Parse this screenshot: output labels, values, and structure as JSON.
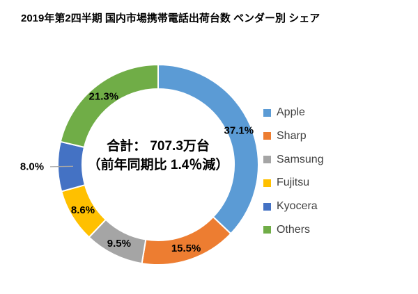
{
  "chart_data": {
    "type": "donut",
    "title": "2019年第2四半期 国内市場携帯電話出荷台数 ベンダー別 シェア",
    "center_text": {
      "line1": "合計： 707.3万台",
      "line2": "（前年同期比 1.4％減）"
    },
    "unit": "%",
    "start_angle_deg": 0,
    "direction": "clockwise",
    "donut_hole_ratio": 0.76,
    "segment_border_color": "#FFFFFF",
    "leader_line_color": "#A6A6A6",
    "legend_position": "right",
    "label_color": "#000000",
    "series": [
      {
        "name": "Apple",
        "value": 37.1,
        "label": "37.1%",
        "color": "#5B9BD5",
        "label_placement": "inside"
      },
      {
        "name": "Sharp",
        "value": 15.5,
        "label": "15.5%",
        "color": "#ED7D31",
        "label_placement": "inside"
      },
      {
        "name": "Samsung",
        "value": 9.5,
        "label": "9.5%",
        "color": "#A5A5A5",
        "label_placement": "inside"
      },
      {
        "name": "Fujitsu",
        "value": 8.6,
        "label": "8.6%",
        "color": "#FFC000",
        "label_placement": "inside"
      },
      {
        "name": "Kyocera",
        "value": 8.0,
        "label": "8.0%",
        "color": "#4472C4",
        "label_placement": "outside-left"
      },
      {
        "name": "Others",
        "value": 21.3,
        "label": "21.3%",
        "color": "#70AD47",
        "label_placement": "inside"
      }
    ]
  }
}
